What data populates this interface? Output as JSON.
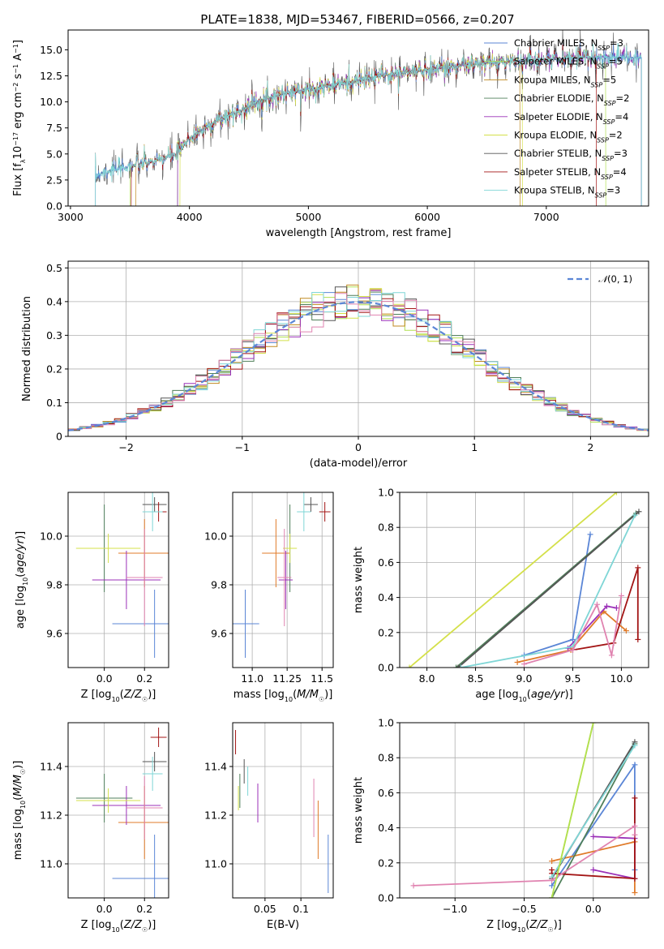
{
  "figure_title": "PLATE=1838, MJD=53467, FIBERID=0566, z=0.207",
  "legend_labels": [
    {
      "base": "Chabrier MILES, N",
      "sub": "SSP",
      "val": "=3"
    },
    {
      "base": "Salpeter MILES, N",
      "sub": "SSP",
      "val": "=5"
    },
    {
      "base": "Kroupa MILES, N",
      "sub": "SSP",
      "val": "=5"
    },
    {
      "base": "Chabrier ELODIE, N",
      "sub": "SSP",
      "val": "=2"
    },
    {
      "base": "Salpeter ELODIE, N",
      "sub": "SSP",
      "val": "=4"
    },
    {
      "base": "Kroupa ELODIE, N",
      "sub": "SSP",
      "val": "=2"
    },
    {
      "base": "Chabrier STELIB, N",
      "sub": "SSP",
      "val": "=3"
    },
    {
      "base": "Salpeter STELIB, N",
      "sub": "SSP",
      "val": "=4"
    },
    {
      "base": "Kroupa STELIB, N",
      "sub": "SSP",
      "val": "=3"
    }
  ],
  "colors": [
    "#5b86d6",
    "#e07b2a",
    "#c08a20",
    "#4f7f5a",
    "#9b30b8",
    "#d4e04a",
    "#555555",
    "#a31515",
    "#7fd6d6",
    "#e083b0",
    "#b0e050"
  ],
  "chart_data": [
    {
      "type": "line",
      "id": "spectrum",
      "title": "PLATE=1838, MJD=53467, FIBERID=0566, z=0.207",
      "xlabel": "wavelength [Angstrom, rest frame]",
      "ylabel": "Flux [f_λ 10^-17 erg cm^-2 s^-1 A^-1]",
      "xlim": [
        2980,
        7860
      ],
      "ylim": [
        0,
        16.9
      ],
      "xticks": [
        3000,
        4000,
        5000,
        6000,
        7000
      ],
      "yticks": [
        0.0,
        2.5,
        5.0,
        7.5,
        10.0,
        12.5,
        15.0
      ],
      "grid": false,
      "legend": "top-right",
      "envelope": {
        "x": [
          3210,
          3300,
          3500,
          3700,
          3900,
          4000,
          4200,
          4400,
          4600,
          4800,
          5000,
          5200,
          5400,
          5600,
          5800,
          6000,
          6200,
          6400,
          6600,
          6800,
          7000,
          7200,
          7400,
          7600,
          7800
        ],
        "y": [
          3.0,
          3.3,
          3.8,
          4.3,
          5.0,
          6.5,
          8.0,
          9.0,
          10.2,
          10.8,
          11.2,
          11.6,
          12.0,
          12.5,
          12.8,
          13.1,
          13.4,
          13.6,
          13.8,
          14.0,
          14.1,
          14.2,
          14.3,
          14.3,
          14.2
        ]
      }
    },
    {
      "type": "step",
      "id": "residuals",
      "xlabel": "(data-model)/error",
      "ylabel": "Normed distribution",
      "xlim": [
        -2.5,
        2.5
      ],
      "ylim": [
        0,
        0.52
      ],
      "xticks": [
        -2,
        -1,
        0,
        1,
        2
      ],
      "yticks": [
        0.0,
        0.1,
        0.2,
        0.3,
        0.4,
        0.5
      ],
      "grid": true,
      "legend": "top-right",
      "legend_label": "N(0,1)",
      "reference": "gaussian mean 0 sigma 1"
    },
    {
      "type": "errorbar",
      "id": "Z-age",
      "xlabel": "Z [log10(Z/Z☉)]",
      "ylabel": "age [log10(age/yr)]",
      "xlim": [
        -0.18,
        0.32
      ],
      "ylim": [
        9.46,
        10.18
      ],
      "xticks": [
        0.0,
        0.2
      ],
      "yticks": [
        9.6,
        9.8,
        10.0
      ],
      "grid": true,
      "points": [
        {
          "x": 0.25,
          "y": 9.64,
          "xerr": 0.21,
          "yerr": 0.14,
          "c": 0
        },
        {
          "x": 0.2,
          "y": 9.93,
          "xerr": 0.13,
          "yerr": 0.14,
          "c": 1
        },
        {
          "x": 0.0,
          "y": 9.95,
          "xerr": 0.14,
          "yerr": 0.18,
          "c": 3
        },
        {
          "x": 0.11,
          "y": 9.82,
          "xerr": 0.17,
          "yerr": 0.12,
          "c": 4
        },
        {
          "x": 0.02,
          "y": 9.95,
          "xerr": 0.16,
          "yerr": 0.06,
          "c": 5
        },
        {
          "x": 0.25,
          "y": 10.13,
          "xerr": 0.06,
          "yerr": 0.03,
          "c": 6
        },
        {
          "x": 0.27,
          "y": 10.1,
          "xerr": 0.04,
          "yerr": 0.04,
          "c": 7
        },
        {
          "x": 0.24,
          "y": 10.1,
          "xerr": 0.05,
          "yerr": 0.08,
          "c": 8
        },
        {
          "x": 0.2,
          "y": 9.83,
          "xerr": 0.09,
          "yerr": 0.2,
          "c": 9
        }
      ]
    },
    {
      "type": "errorbar",
      "id": "mass-age",
      "xlabel": "mass [log10(M/M☉)]",
      "ylabel": "",
      "xlim": [
        10.86,
        11.58
      ],
      "ylim": [
        9.46,
        10.18
      ],
      "xticks": [
        11.0,
        11.25,
        11.5
      ],
      "yticks": [
        9.6,
        9.8,
        10.0
      ],
      "grid": true,
      "points": [
        {
          "x": 10.95,
          "y": 9.64,
          "xerr": 0.1,
          "yerr": 0.14,
          "c": 0
        },
        {
          "x": 11.17,
          "y": 9.93,
          "xerr": 0.1,
          "yerr": 0.14,
          "c": 1
        },
        {
          "x": 11.27,
          "y": 9.95,
          "xerr": 0.02,
          "yerr": 0.18,
          "c": 3
        },
        {
          "x": 11.24,
          "y": 9.82,
          "xerr": 0.05,
          "yerr": 0.12,
          "c": 4
        },
        {
          "x": 11.27,
          "y": 9.95,
          "xerr": 0.05,
          "yerr": 0.06,
          "c": 5
        },
        {
          "x": 11.42,
          "y": 10.13,
          "xerr": 0.05,
          "yerr": 0.03,
          "c": 6
        },
        {
          "x": 11.52,
          "y": 10.1,
          "xerr": 0.04,
          "yerr": 0.04,
          "c": 7
        },
        {
          "x": 11.37,
          "y": 10.1,
          "xerr": 0.05,
          "yerr": 0.08,
          "c": 8
        },
        {
          "x": 11.23,
          "y": 9.83,
          "xerr": 0.05,
          "yerr": 0.2,
          "c": 9
        }
      ]
    },
    {
      "type": "line",
      "id": "age-weight",
      "xlabel": "age [log10(age/yr)]",
      "ylabel": "mass weight",
      "xlim": [
        7.72,
        10.28
      ],
      "ylim": [
        0,
        1
      ],
      "xticks": [
        8.0,
        8.5,
        9.0,
        9.5,
        10.0
      ],
      "yticks": [
        0.0,
        0.2,
        0.4,
        0.6,
        0.8,
        1.0
      ],
      "grid": true,
      "series": [
        {
          "c": 0,
          "x": [
            9.0,
            9.5,
            9.68
          ],
          "y": [
            0.07,
            0.16,
            0.76
          ]
        },
        {
          "c": 1,
          "x": [
            8.93,
            9.48,
            9.82,
            10.05
          ],
          "y": [
            0.03,
            0.1,
            0.32,
            0.21
          ]
        },
        {
          "c": 3,
          "x": [
            8.3,
            10.15
          ],
          "y": [
            0.0,
            0.88
          ]
        },
        {
          "c": 4,
          "x": [
            9.45,
            9.85,
            9.95
          ],
          "y": [
            0.11,
            0.35,
            0.34
          ]
        },
        {
          "c": 5,
          "x": [
            7.82,
            9.95
          ],
          "y": [
            0.0,
            1.0
          ]
        },
        {
          "c": 6,
          "x": [
            8.32,
            10.18
          ],
          "y": [
            0.0,
            0.89
          ]
        },
        {
          "c": 7,
          "x": [
            9.5,
            9.92,
            10.17,
            10.17
          ],
          "y": [
            0.1,
            0.14,
            0.57,
            0.16
          ]
        },
        {
          "c": 8,
          "x": [
            8.35,
            9.5,
            10.14
          ],
          "y": [
            0.0,
            0.12,
            0.87
          ]
        },
        {
          "c": 9,
          "x": [
            9.0,
            9.5,
            9.75,
            9.9,
            10.0
          ],
          "y": [
            0.02,
            0.1,
            0.36,
            0.07,
            0.41
          ]
        }
      ]
    },
    {
      "type": "errorbar",
      "id": "Z-mass",
      "xlabel": "Z [log10(Z/Z☉)]",
      "ylabel": "mass [log10(M/M☉)]",
      "xlim": [
        -0.18,
        0.32
      ],
      "ylim": [
        10.86,
        11.58
      ],
      "xticks": [
        0.0,
        0.2
      ],
      "yticks": [
        11.0,
        11.2,
        11.4
      ],
      "grid": true,
      "points": [
        {
          "x": 0.25,
          "y": 10.94,
          "xerr": 0.21,
          "yerr": 0.18,
          "c": 0
        },
        {
          "x": 0.2,
          "y": 11.17,
          "xerr": 0.13,
          "yerr": 0.15,
          "c": 1
        },
        {
          "x": 0.0,
          "y": 11.27,
          "xerr": 0.14,
          "yerr": 0.1,
          "c": 3
        },
        {
          "x": 0.11,
          "y": 11.24,
          "xerr": 0.17,
          "yerr": 0.08,
          "c": 4
        },
        {
          "x": 0.02,
          "y": 11.26,
          "xerr": 0.16,
          "yerr": 0.05,
          "c": 5
        },
        {
          "x": 0.25,
          "y": 11.42,
          "xerr": 0.06,
          "yerr": 0.04,
          "c": 6
        },
        {
          "x": 0.27,
          "y": 11.52,
          "xerr": 0.04,
          "yerr": 0.04,
          "c": 7
        },
        {
          "x": 0.24,
          "y": 11.37,
          "xerr": 0.05,
          "yerr": 0.07,
          "c": 8
        },
        {
          "x": 0.2,
          "y": 11.23,
          "xerr": 0.09,
          "yerr": 0.13,
          "c": 9
        }
      ]
    },
    {
      "type": "errorbar",
      "id": "EBV-mass",
      "xlabel": "E(B-V)",
      "ylabel": "",
      "xlim": [
        0.005,
        0.145
      ],
      "ylim": [
        10.86,
        11.58
      ],
      "xticks": [
        0.05,
        0.1
      ],
      "yticks": [
        11.0,
        11.2,
        11.4
      ],
      "grid": true,
      "points": [
        {
          "x": 0.138,
          "y": 11.0,
          "xerr": 0.0,
          "yerr": 0.12,
          "c": 0
        },
        {
          "x": 0.124,
          "y": 11.14,
          "xerr": 0.0,
          "yerr": 0.12,
          "c": 1
        },
        {
          "x": 0.015,
          "y": 11.3,
          "xerr": 0.0,
          "yerr": 0.07,
          "c": 3
        },
        {
          "x": 0.04,
          "y": 11.25,
          "xerr": 0.0,
          "yerr": 0.08,
          "c": 4
        },
        {
          "x": 0.013,
          "y": 11.27,
          "xerr": 0.0,
          "yerr": 0.05,
          "c": 5
        },
        {
          "x": 0.021,
          "y": 11.38,
          "xerr": 0.0,
          "yerr": 0.05,
          "c": 6
        },
        {
          "x": 0.009,
          "y": 11.5,
          "xerr": 0.0,
          "yerr": 0.05,
          "c": 7
        },
        {
          "x": 0.026,
          "y": 11.34,
          "xerr": 0.0,
          "yerr": 0.06,
          "c": 8
        },
        {
          "x": 0.118,
          "y": 11.23,
          "xerr": 0.0,
          "yerr": 0.12,
          "c": 9
        }
      ]
    },
    {
      "type": "line",
      "id": "Z-weight",
      "xlabel": "Z [log10(Z/Z☉)]",
      "ylabel": "mass weight",
      "xlim": [
        -1.4,
        0.4
      ],
      "ylim": [
        0,
        1
      ],
      "xticks": [
        -1.0,
        -0.5,
        0.0
      ],
      "yticks": [
        0.0,
        0.2,
        0.4,
        0.6,
        0.8,
        1.0
      ],
      "grid": true,
      "series": [
        {
          "c": 0,
          "x": [
            -0.3,
            0.3,
            0.3
          ],
          "y": [
            0.07,
            0.76,
            0.16
          ]
        },
        {
          "c": 1,
          "x": [
            -0.3,
            0.3,
            0.3
          ],
          "y": [
            0.21,
            0.32,
            0.03
          ]
        },
        {
          "c": 3,
          "x": [
            -0.3,
            0.3
          ],
          "y": [
            0.0,
            0.88
          ]
        },
        {
          "c": 4,
          "x": [
            0.0,
            0.3,
            0.3,
            0.0
          ],
          "y": [
            0.35,
            0.34,
            0.11,
            0.16
          ]
        },
        {
          "c": 5,
          "x": [
            -0.3,
            0.0
          ],
          "y": [
            0.0,
            1.0
          ]
        },
        {
          "c": 6,
          "x": [
            -0.3,
            0.3
          ],
          "y": [
            0.11,
            0.89
          ]
        },
        {
          "c": 7,
          "x": [
            -0.3,
            -0.3,
            0.3,
            0.3
          ],
          "y": [
            0.16,
            0.14,
            0.11,
            0.57
          ]
        },
        {
          "c": 8,
          "x": [
            -0.3,
            0.3
          ],
          "y": [
            0.12,
            0.87
          ]
        },
        {
          "c": 9,
          "x": [
            -1.3,
            -0.3,
            0.3,
            0.3
          ],
          "y": [
            0.07,
            0.1,
            0.41,
            0.36
          ]
        },
        {
          "c": 10,
          "x": [
            -0.3,
            0.0
          ],
          "y": [
            0.0,
            1.0
          ]
        }
      ]
    }
  ]
}
